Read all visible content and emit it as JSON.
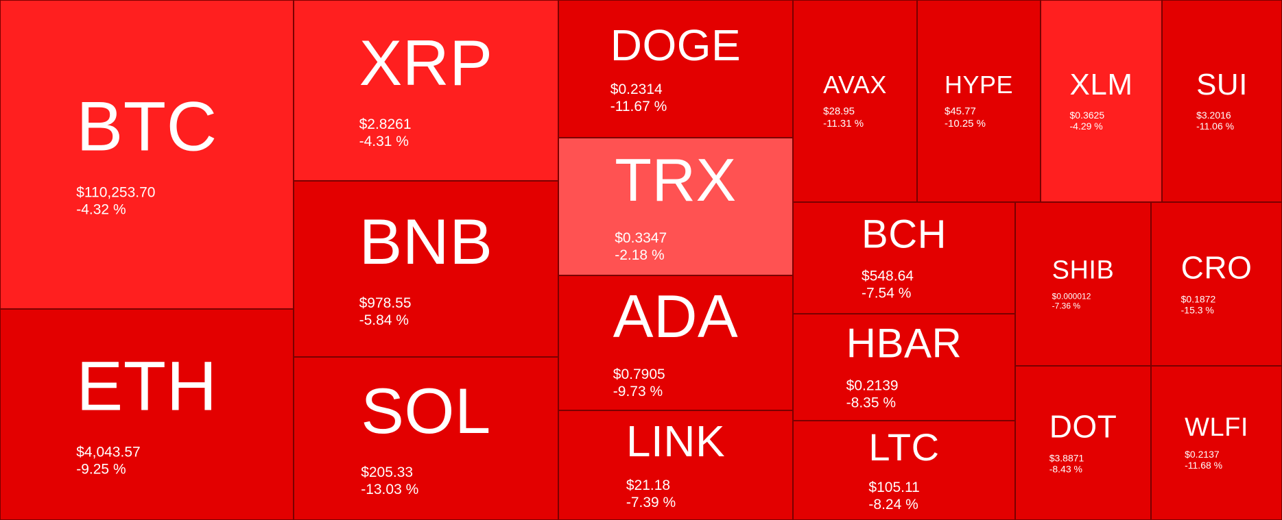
{
  "colors": {
    "background": "#e30000",
    "border": "#7a0000",
    "text": "#ffffff",
    "tone_strong": "#e30000",
    "tone_mid": "#ff1f1f",
    "tone_light": "#ff5252"
  },
  "tiles": [
    {
      "symbol": "BTC",
      "price": "$110,253.70",
      "change": "-4.32 %",
      "tone": "mid"
    },
    {
      "symbol": "ETH",
      "price": "$4,043.57",
      "change": "-9.25 %",
      "tone": "strong"
    },
    {
      "symbol": "XRP",
      "price": "$2.8261",
      "change": "-4.31 %",
      "tone": "mid"
    },
    {
      "symbol": "BNB",
      "price": "$978.55",
      "change": "-5.84 %",
      "tone": "strong"
    },
    {
      "symbol": "SOL",
      "price": "$205.33",
      "change": "-13.03 %",
      "tone": "strong"
    },
    {
      "symbol": "DOGE",
      "price": "$0.2314",
      "change": "-11.67 %",
      "tone": "strong"
    },
    {
      "symbol": "TRX",
      "price": "$0.3347",
      "change": "-2.18 %",
      "tone": "light"
    },
    {
      "symbol": "ADA",
      "price": "$0.7905",
      "change": "-9.73 %",
      "tone": "strong"
    },
    {
      "symbol": "LINK",
      "price": "$21.18",
      "change": "-7.39 %",
      "tone": "strong"
    },
    {
      "symbol": "AVAX",
      "price": "$28.95",
      "change": "-11.31 %",
      "tone": "strong"
    },
    {
      "symbol": "HYPE",
      "price": "$45.77",
      "change": "-10.25 %",
      "tone": "strong"
    },
    {
      "symbol": "XLM",
      "price": "$0.3625",
      "change": "-4.29 %",
      "tone": "mid"
    },
    {
      "symbol": "SUI",
      "price": "$3.2016",
      "change": "-11.06 %",
      "tone": "strong"
    },
    {
      "symbol": "BCH",
      "price": "$548.64",
      "change": "-7.54 %",
      "tone": "strong"
    },
    {
      "symbol": "HBAR",
      "price": "$0.2139",
      "change": "-8.35 %",
      "tone": "strong"
    },
    {
      "symbol": "LTC",
      "price": "$105.11",
      "change": "-8.24 %",
      "tone": "strong"
    },
    {
      "symbol": "SHIB",
      "price": "$0.000012",
      "change": "-7.36 %",
      "tone": "strong"
    },
    {
      "symbol": "CRO",
      "price": "$0.1872",
      "change": "-15.3 %",
      "tone": "strong"
    },
    {
      "symbol": "DOT",
      "price": "$3.8871",
      "change": "-8.43 %",
      "tone": "strong"
    },
    {
      "symbol": "WLFI",
      "price": "$0.2137",
      "change": "-11.68 %",
      "tone": "strong"
    }
  ]
}
